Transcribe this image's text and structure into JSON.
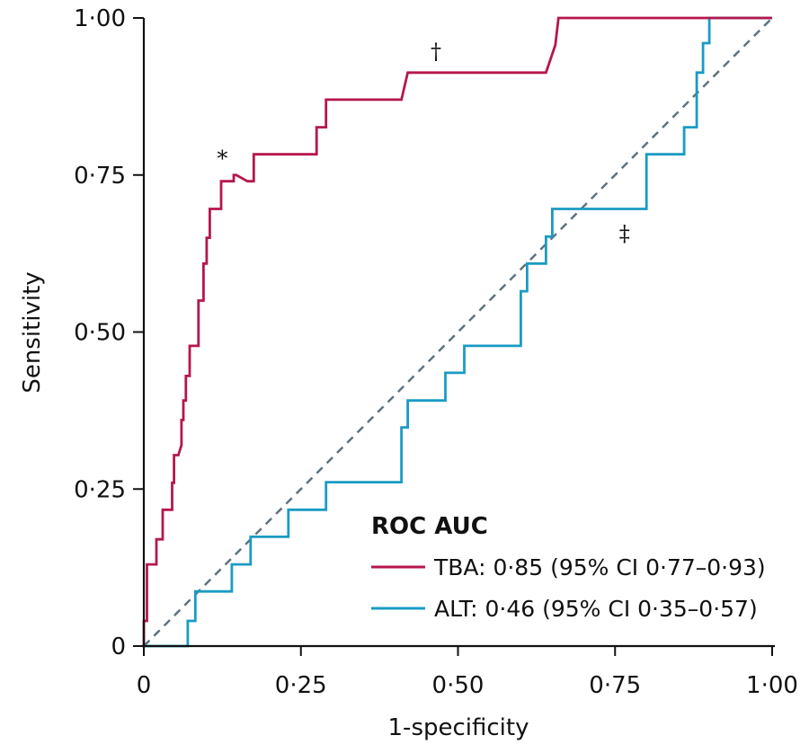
{
  "chart_data": {
    "type": "line",
    "xlabel": "1-specificity",
    "ylabel": "Sensitivity",
    "xlim": [
      0,
      1
    ],
    "ylim": [
      0,
      1
    ],
    "x_ticks": [
      {
        "value": 0,
        "label": "0"
      },
      {
        "value": 0.25,
        "label": "0·25"
      },
      {
        "value": 0.5,
        "label": "0·50"
      },
      {
        "value": 0.75,
        "label": "0·75"
      },
      {
        "value": 1,
        "label": "1·00"
      }
    ],
    "y_ticks": [
      {
        "value": 0,
        "label": "0"
      },
      {
        "value": 0.25,
        "label": "0·25"
      },
      {
        "value": 0.5,
        "label": "0·50"
      },
      {
        "value": 0.75,
        "label": "0·75"
      },
      {
        "value": 1,
        "label": "1·00"
      }
    ],
    "grid": false,
    "legend": {
      "title": "ROC AUC",
      "position": "bottom-right"
    },
    "series": [
      {
        "name": "TBA",
        "legend_label": "TBA: 0·85 (95% CI 0·77–0·93)",
        "color": "#b5174b",
        "x": [
          0,
          0,
          0.005,
          0.005,
          0.02,
          0.02,
          0.03,
          0.03,
          0.045,
          0.045,
          0.045,
          0.048,
          0.048,
          0.055,
          0.06,
          0.06,
          0.06,
          0.063,
          0.063,
          0.067,
          0.067,
          0.073,
          0.073,
          0.087,
          0.087,
          0.095,
          0.095,
          0.1,
          0.1,
          0.105,
          0.105,
          0.123,
          0.123,
          0.143,
          0.143,
          0.147,
          0.165,
          0.175,
          0.175,
          0.26,
          0.275,
          0.275,
          0.29,
          0.29,
          0.305,
          0.305,
          0.41,
          0.42,
          0.42,
          0.64,
          0.655,
          0.655,
          0.66,
          0.66,
          0.91,
          1
        ],
        "y": [
          0,
          0.04,
          0.04,
          0.13,
          0.13,
          0.17,
          0.17,
          0.217,
          0.217,
          0.24,
          0.26,
          0.26,
          0.304,
          0.304,
          0.32,
          0.348,
          0.36,
          0.36,
          0.391,
          0.391,
          0.43,
          0.43,
          0.478,
          0.478,
          0.55,
          0.55,
          0.609,
          0.609,
          0.65,
          0.65,
          0.696,
          0.696,
          0.74,
          0.74,
          0.75,
          0.75,
          0.74,
          0.74,
          0.783,
          0.783,
          0.783,
          0.826,
          0.826,
          0.87,
          0.87,
          0.87,
          0.87,
          0.913,
          0.913,
          0.913,
          0.957,
          0.957,
          1,
          1,
          1,
          1
        ]
      },
      {
        "name": "ALT",
        "legend_label": "ALT: 0·46 (95% CI 0·35–0·57)",
        "color": "#1a9bc4",
        "x": [
          0,
          0.07,
          0.07,
          0.082,
          0.082,
          0.14,
          0.14,
          0.17,
          0.17,
          0.23,
          0.23,
          0.29,
          0.29,
          0.41,
          0.41,
          0.42,
          0.42,
          0.48,
          0.48,
          0.51,
          0.51,
          0.6,
          0.6,
          0.61,
          0.61,
          0.64,
          0.64,
          0.65,
          0.65,
          0.67,
          0.67,
          0.8,
          0.8,
          0.86,
          0.86,
          0.88,
          0.88,
          0.89,
          0.89,
          0.9,
          0.9,
          1
        ],
        "y": [
          0,
          0,
          0.04,
          0.04,
          0.087,
          0.087,
          0.13,
          0.13,
          0.174,
          0.174,
          0.217,
          0.217,
          0.261,
          0.261,
          0.348,
          0.348,
          0.391,
          0.391,
          0.435,
          0.435,
          0.478,
          0.478,
          0.565,
          0.565,
          0.609,
          0.609,
          0.652,
          0.652,
          0.696,
          0.696,
          0.696,
          0.696,
          0.783,
          0.783,
          0.826,
          0.826,
          0.913,
          0.913,
          0.96,
          0.96,
          1,
          1
        ]
      },
      {
        "name": "",
        "role": "reference",
        "color": "#5e7480",
        "dashed": true,
        "x": [
          0,
          1
        ],
        "y": [
          0,
          1
        ]
      }
    ],
    "annotations": [
      {
        "text": "*",
        "x": 0.125,
        "y": 0.765
      },
      {
        "text": "†",
        "x": 0.465,
        "y": 0.935
      },
      {
        "text": "‡",
        "x": 0.765,
        "y": 0.645
      }
    ]
  }
}
